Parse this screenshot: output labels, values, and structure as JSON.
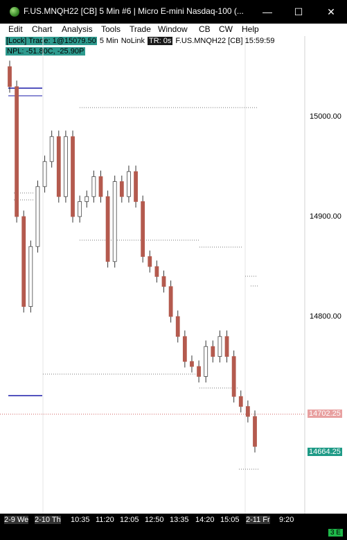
{
  "window": {
    "title": "F.US.MNQH22 [CB]  5 Min   #6 | Micro E-mini Nasdaq-100 (...",
    "minimize_label": "—",
    "maximize_label": "☐",
    "close_label": "✕"
  },
  "menu": [
    "Edit",
    "Chart",
    "Analysis",
    "Tools",
    "Trade",
    "Window",
    "CB",
    "CW",
    "Help"
  ],
  "info": {
    "lock_trade": "[Lock] Trade: 1@15079.50",
    "interval": "5 Min",
    "link": "NoLink",
    "tr": "TR: 0s",
    "symbol_time": "F.US.MNQH22 [CB] 15:59:59",
    "npl": "NPL: -51.80C, -25.90P"
  },
  "price_axis": {
    "ticks": [
      "15000.00",
      "14900.00",
      "14800.00"
    ],
    "last_price_label": "14702.25",
    "current_price_label": "14664.25"
  },
  "time_axis": {
    "labels": [
      "2-9 We",
      "2-10 Th",
      "10:35",
      "11:20",
      "12:05",
      "12:50",
      "13:35",
      "14:20",
      "15:05",
      "2-11 Fr",
      "9:20"
    ]
  },
  "status": {
    "badge": "3 E"
  },
  "colors": {
    "up_candle": "#ffffff",
    "down_candle": "#b45a4e",
    "teal": "#2e9a8e",
    "blue_line": "#1a1aa8",
    "last_price_line": "#d06060"
  },
  "chart_data": {
    "type": "candlestick",
    "ylim": [
      14650,
      15085
    ],
    "ylabel": "",
    "xlabel": "",
    "y_ticks": [
      15000,
      14900,
      14800
    ],
    "last_price": 14702.25,
    "current_price": 14664.25,
    "closes": [
      15030,
      14900,
      14810,
      14870,
      14930,
      14955,
      14980,
      14920,
      14980,
      14900,
      14915,
      14920,
      14940,
      14920,
      14855,
      14935,
      14920,
      14945,
      14915,
      14860,
      14850,
      14840,
      14830,
      14800,
      14780,
      14755,
      14750,
      14740,
      14770,
      14760,
      14780,
      14760,
      14720,
      14710,
      14700,
      14670
    ]
  }
}
